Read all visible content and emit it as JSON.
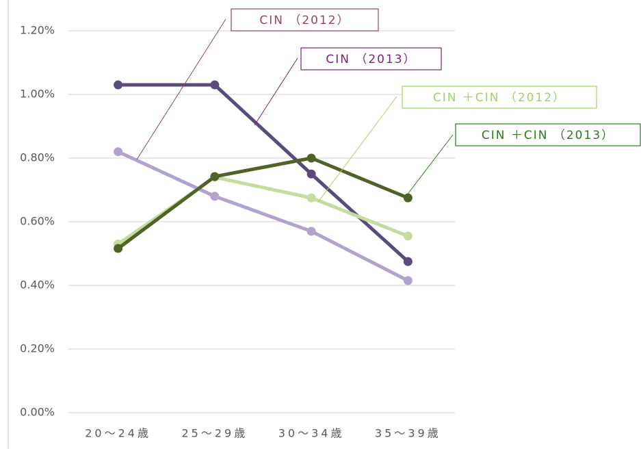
{
  "chart_data": {
    "type": "line",
    "categories": [
      "20～24歳",
      "25～29歳",
      "30～34歳",
      "35～39歳"
    ],
    "series": [
      {
        "name": "CIN （2012）",
        "color": "#b3a2cf",
        "label_color": "#9b4066",
        "values": [
          0.82,
          0.68,
          0.57,
          0.415
        ]
      },
      {
        "name": "CIN （2013）",
        "color": "#5b4a7e",
        "label_color": "#7a1f7a",
        "values": [
          1.03,
          1.03,
          0.75,
          0.475
        ]
      },
      {
        "name": "CIN ＋CIN （2012）",
        "color": "#c5dca0",
        "label_color": "#9fd35f",
        "values": [
          0.53,
          0.74,
          0.675,
          0.555
        ]
      },
      {
        "name": "CIN ＋CIN （2013）",
        "color": "#4f6228",
        "label_color": "#2a7a1a",
        "values": [
          0.516,
          0.742,
          0.8,
          0.675
        ]
      }
    ],
    "ylim": [
      0,
      1.2
    ],
    "yticks": [
      {
        "value": 0,
        "label": "0.00%"
      },
      {
        "value": 0.2,
        "label": "0.20%"
      },
      {
        "value": 0.4,
        "label": "0.40%"
      },
      {
        "value": 0.6,
        "label": "0.60%"
      },
      {
        "value": 0.8,
        "label": "0.80%"
      },
      {
        "value": 1.0,
        "label": "1.00%"
      },
      {
        "value": 1.2,
        "label": "1.20%"
      }
    ],
    "grid": true
  }
}
